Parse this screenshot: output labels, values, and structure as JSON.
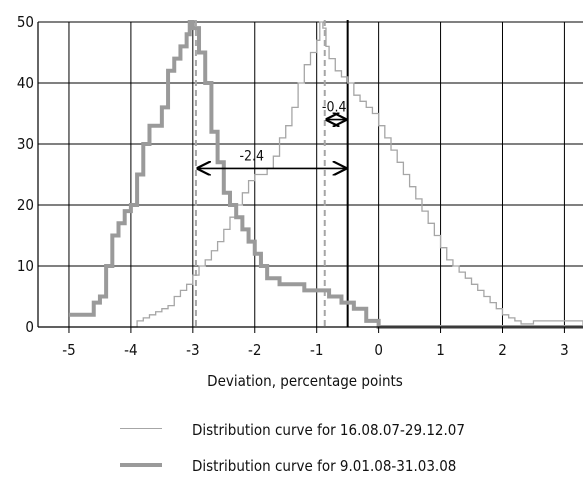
{
  "chart_data": {
    "type": "line",
    "title": "",
    "xlabel": "Deviation, percentage points",
    "ylabel": "",
    "xlim": [
      -5.5,
      3.3
    ],
    "ylim": [
      0,
      50
    ],
    "xticks": [
      -5,
      -4,
      -3,
      -2,
      -1,
      0,
      1,
      2,
      3
    ],
    "xtick_labels": [
      "-5",
      "-4",
      "-3",
      "-2",
      "-1",
      "0",
      "1",
      "2",
      "3"
    ],
    "yticks": [
      0,
      10,
      20,
      30,
      40,
      50
    ],
    "ytick_labels": [
      "0",
      "10",
      "20",
      "30",
      "40",
      "50"
    ],
    "grid": true,
    "legend_position": "bottom",
    "series": [
      {
        "name": "Distribution curve for 16.08.07-29.12.07",
        "color": "#a6a6a6",
        "style": "thin step line",
        "x": [
          -4.0,
          -3.9,
          -3.8,
          -3.7,
          -3.6,
          -3.5,
          -3.4,
          -3.3,
          -3.2,
          -3.1,
          -3.0,
          -2.9,
          -2.8,
          -2.7,
          -2.6,
          -2.5,
          -2.4,
          -2.3,
          -2.2,
          -2.1,
          -2.0,
          -1.9,
          -1.8,
          -1.7,
          -1.6,
          -1.5,
          -1.4,
          -1.3,
          -1.2,
          -1.1,
          -1.0,
          -0.95,
          -0.9,
          -0.85,
          -0.8,
          -0.7,
          -0.6,
          -0.5,
          -0.4,
          -0.3,
          -0.2,
          -0.1,
          0.0,
          0.1,
          0.2,
          0.3,
          0.4,
          0.5,
          0.6,
          0.7,
          0.8,
          0.9,
          1.0,
          1.1,
          1.2,
          1.3,
          1.4,
          1.5,
          1.6,
          1.7,
          1.8,
          1.9,
          2.0,
          2.1,
          2.2,
          2.3,
          2.5,
          2.8,
          3.1,
          3.3
        ],
        "y": [
          0,
          1,
          1.5,
          2,
          2.5,
          3,
          3.5,
          5,
          6,
          7,
          8.5,
          10,
          11,
          12.5,
          14,
          16,
          18,
          20,
          22,
          24,
          25,
          25,
          26,
          28,
          31,
          33,
          36,
          40,
          43,
          45,
          47,
          50,
          49,
          46,
          44,
          42,
          41,
          40,
          38,
          37,
          36,
          35,
          33,
          31,
          29,
          27,
          25,
          23,
          21,
          19,
          17,
          15,
          13,
          11,
          10,
          9,
          8,
          7,
          6,
          5,
          4,
          3,
          2,
          1.5,
          1,
          0.5,
          1,
          1,
          1,
          0
        ]
      },
      {
        "name": "Distribution curve for 9.01.08-31.03.08",
        "color": "#9a9a9a",
        "style": "thick step line",
        "x": [
          -5.0,
          -4.8,
          -4.6,
          -4.5,
          -4.4,
          -4.3,
          -4.2,
          -4.1,
          -4.0,
          -3.9,
          -3.8,
          -3.7,
          -3.6,
          -3.5,
          -3.4,
          -3.3,
          -3.2,
          -3.1,
          -3.05,
          -3.0,
          -2.9,
          -2.8,
          -2.7,
          -2.6,
          -2.5,
          -2.4,
          -2.3,
          -2.2,
          -2.1,
          -2.0,
          -1.9,
          -1.8,
          -1.6,
          -1.4,
          -1.2,
          -1.0,
          -0.8,
          -0.6,
          -0.4,
          -0.2,
          0.0,
          0.5,
          1.0,
          2.0,
          3.3
        ],
        "y": [
          2,
          2,
          4,
          5,
          10,
          15,
          17,
          19,
          20,
          25,
          30,
          33,
          33,
          36,
          42,
          44,
          46,
          48,
          50,
          49,
          45,
          40,
          32,
          27,
          22,
          20,
          18,
          16,
          14,
          12,
          10,
          8,
          7,
          7,
          6,
          6,
          5,
          4,
          3,
          1,
          0,
          0,
          0,
          0,
          0
        ]
      }
    ],
    "reference_lines": [
      {
        "x": -2.95,
        "style": "dashed",
        "color": "#a6a6a6"
      },
      {
        "x": -0.87,
        "style": "dashed",
        "color": "#a6a6a6"
      },
      {
        "x": -0.5,
        "style": "solid",
        "color": "#000000"
      }
    ],
    "annotations": [
      {
        "text": "-2.4",
        "from": -2.95,
        "to": -0.5,
        "y": 26
      },
      {
        "text": "-0.4",
        "from": -0.87,
        "to": -0.5,
        "y": 34
      }
    ]
  },
  "legend": [
    {
      "label": "Distribution curve for 16.08.07-29.12.07",
      "color": "#a6a6a6",
      "width": 1.3
    },
    {
      "label": "Distribution curve for 9.01.08-31.03.08",
      "color": "#9a9a9a",
      "width": 4
    }
  ]
}
